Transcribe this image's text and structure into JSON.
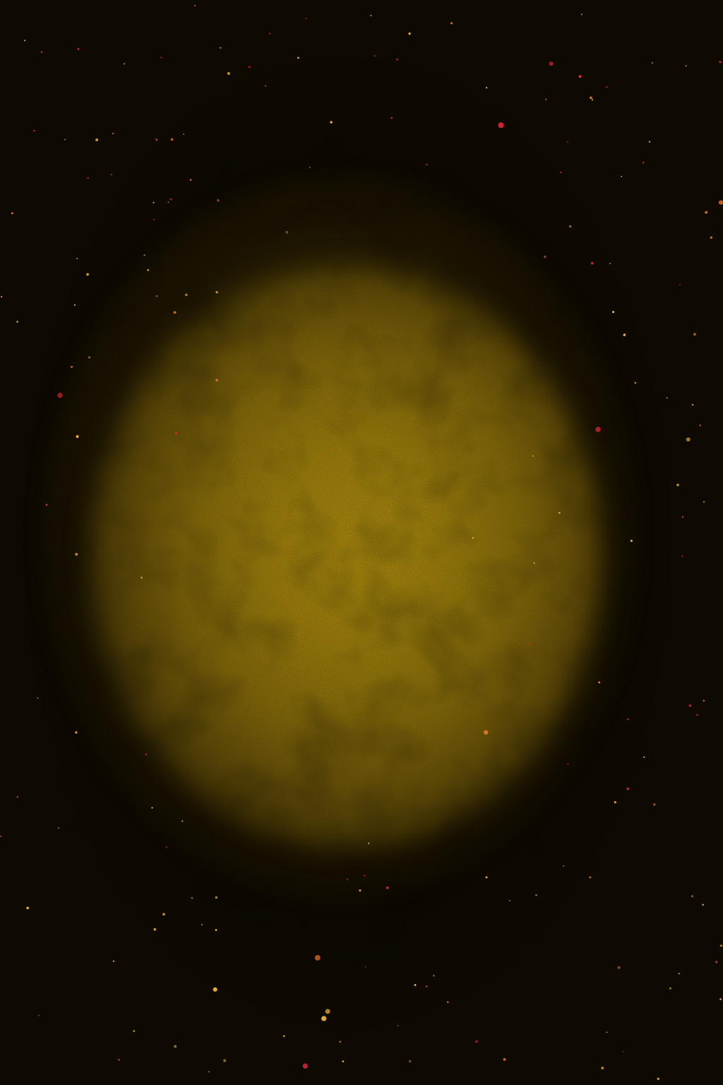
{
  "scene": {
    "subject": "golden-nebula-background",
    "colors": {
      "background": "#0e0a02",
      "glow_center": "#a7870e",
      "glow_edge": "#564307",
      "star_gold": "#f0b43a",
      "star_red": "#e0283a",
      "star_orange": "#f07a2a"
    }
  }
}
